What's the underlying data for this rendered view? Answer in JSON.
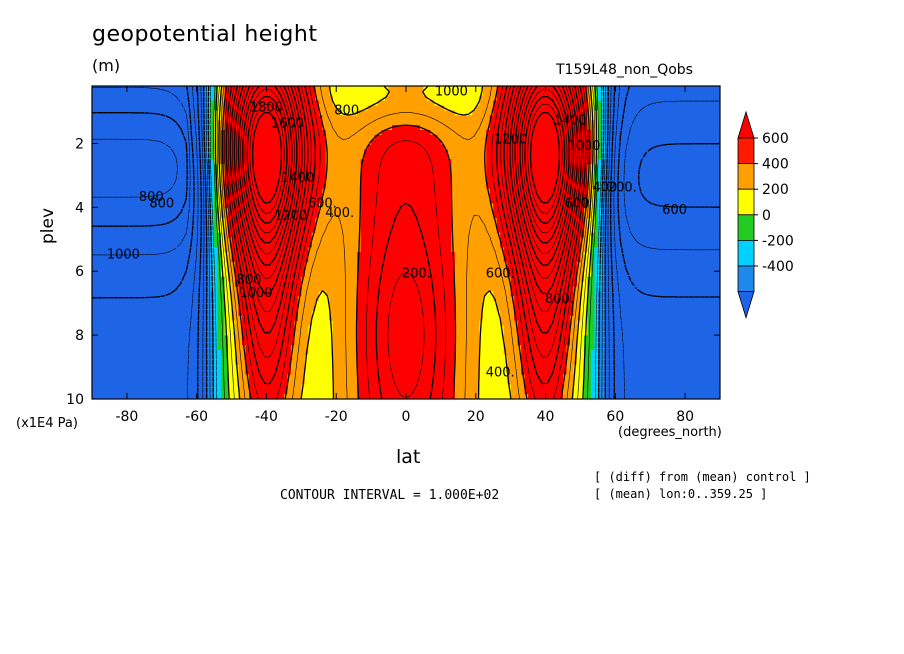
{
  "chart_data": {
    "type": "heatmap",
    "title": "geopotential height",
    "units": "(m)",
    "run_label": "T159L48_non_Qobs",
    "xlabel": "lat",
    "ylabel": "plev",
    "x_units": "(degrees_north)",
    "y_units": "(x1E4 Pa)",
    "xlim": [
      -90,
      90
    ],
    "ylim": [
      10,
      0.2
    ],
    "x_ticks": [
      "-80",
      "-60",
      "-40",
      "-20",
      "0",
      "20",
      "40",
      "60",
      "80"
    ],
    "y_ticks": [
      "2",
      "4",
      "6",
      "8",
      "10"
    ],
    "contour_interval": "CONTOUR INTERVAL = 1.000E+02",
    "notes": [
      "[ (diff) from (mean) control ]",
      "[ (mean) lon:0..359.25 ]"
    ],
    "colorbar": {
      "labels": [
        "600",
        "400",
        "200",
        "0",
        "-200",
        "-400"
      ],
      "levels": [
        -400,
        -200,
        0,
        200,
        400,
        600
      ],
      "colors": [
        "#1e88ec",
        "#00d2ff",
        "#22cc22",
        "#ffff00",
        "#ffa000",
        "#ff1a00"
      ],
      "extended_colors": {
        "below": "#1e64e6",
        "above": "#ff0000"
      }
    },
    "contour_labels": [
      {
        "text": "800",
        "lat": -73,
        "p": 3.8
      },
      {
        "text": "1000",
        "lat": -81,
        "p": 5.6
      },
      {
        "text": "800",
        "lat": -45,
        "p": 6.4
      },
      {
        "text": "1000",
        "lat": -43,
        "p": 6.8
      },
      {
        "text": "1200",
        "lat": -33,
        "p": 4.4
      },
      {
        "text": "1400",
        "lat": -31,
        "p": 3.2
      },
      {
        "text": "1600",
        "lat": -34,
        "p": 1.5
      },
      {
        "text": "1800",
        "lat": -40,
        "p": 1.0
      },
      {
        "text": "600.",
        "lat": -24,
        "p": 4.0
      },
      {
        "text": "800",
        "lat": -17,
        "p": 1.1
      },
      {
        "text": "1000",
        "lat": 13,
        "p": 0.5
      },
      {
        "text": "400.",
        "lat": -19,
        "p": 4.3
      },
      {
        "text": "200.",
        "lat": 3,
        "p": 6.2
      },
      {
        "text": "600.",
        "lat": 27,
        "p": 6.2
      },
      {
        "text": "400.",
        "lat": 27,
        "p": 9.3
      },
      {
        "text": "1200",
        "lat": 30,
        "p": 2.0
      },
      {
        "text": "800.",
        "lat": 44,
        "p": 7.0
      },
      {
        "text": "1400",
        "lat": 47,
        "p": 1.4
      },
      {
        "text": "1000",
        "lat": 51,
        "p": 2.2
      },
      {
        "text": "600",
        "lat": 49,
        "p": 4.0
      },
      {
        "text": "400",
        "lat": 57,
        "p": 3.5
      },
      {
        "text": "200.",
        "lat": 62,
        "p": 3.5
      },
      {
        "text": "600",
        "lat": 77,
        "p": 4.2
      },
      {
        "text": "800",
        "lat": -70,
        "p": 4.0
      }
    ]
  }
}
